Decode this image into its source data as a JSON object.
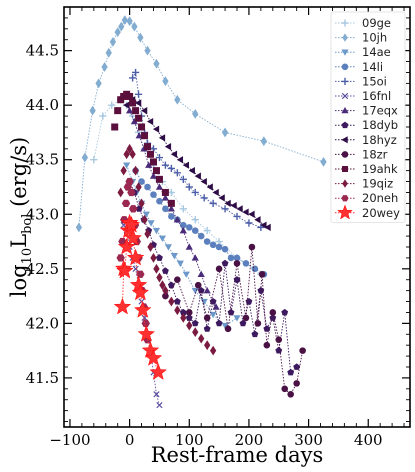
{
  "chart_data": {
    "type": "scatter",
    "xlabel": "Rest-frame days",
    "ylabel_main": "log",
    "ylabel_sub": "10",
    "ylabel_rest": "L",
    "ylabel_sub2": "bol",
    "ylabel_unit": " (erg/s)",
    "xlim": [
      -110,
      470
    ],
    "ylim": [
      41.05,
      44.9
    ],
    "xticks": [
      -100,
      0,
      100,
      200,
      300,
      400
    ],
    "yticks": [
      41.5,
      42.0,
      42.5,
      43.0,
      43.5,
      44.0,
      44.5
    ],
    "ytick_labels": [
      "41.5",
      "42.0",
      "42.5",
      "43.0",
      "43.5",
      "44.0",
      "44.5"
    ],
    "grid": false,
    "legend_position": "top-right",
    "series": [
      {
        "name": "09ge",
        "color": "#a8c8e0",
        "marker": "plus",
        "line": true,
        "x": [
          -60,
          -45,
          -30,
          -15,
          -5,
          5,
          15,
          25,
          40,
          55,
          70,
          90,
          110,
          130,
          150,
          180,
          220
        ],
        "y": [
          43.5,
          43.9,
          44.0,
          44.05,
          44.0,
          43.9,
          43.75,
          43.6,
          43.45,
          43.3,
          43.2,
          43.05,
          42.95,
          42.85,
          42.75,
          42.6,
          42.45
        ]
      },
      {
        "name": "10jh",
        "color": "#82acd0",
        "marker": "diamond",
        "line": true,
        "x": [
          -85,
          -75,
          -62,
          -52,
          -42,
          -35,
          -28,
          -20,
          -14,
          -8,
          0,
          8,
          18,
          30,
          45,
          60,
          80,
          110,
          160,
          225,
          325
        ],
        "y": [
          42.88,
          43.52,
          43.95,
          44.2,
          44.35,
          44.48,
          44.58,
          44.67,
          44.72,
          44.78,
          44.77,
          44.72,
          44.62,
          44.5,
          44.38,
          44.22,
          44.05,
          43.92,
          43.75,
          43.67,
          43.48
        ]
      },
      {
        "name": "14ae",
        "color": "#6c99c9",
        "marker": "tri-down",
        "line": true,
        "x": [
          -5,
          5,
          12,
          20,
          28,
          36,
          45,
          55,
          65,
          75,
          85,
          95,
          110,
          125,
          140,
          160,
          180
        ],
        "y": [
          43.45,
          43.3,
          43.2,
          43.1,
          43.0,
          42.92,
          42.85,
          42.78,
          42.7,
          42.62,
          42.55,
          42.45,
          42.3,
          42.2,
          42.08,
          41.98,
          42.05
        ]
      },
      {
        "name": "14li",
        "color": "#5b80bd",
        "marker": "circle",
        "line": true,
        "x": [
          10,
          20,
          30,
          40,
          50,
          60,
          70,
          80,
          90,
          100,
          110,
          120,
          130,
          140,
          150,
          160,
          170,
          180,
          195,
          210,
          225
        ],
        "y": [
          43.4,
          43.3,
          43.25,
          43.18,
          43.12,
          43.05,
          42.98,
          42.95,
          42.9,
          42.88,
          42.85,
          42.8,
          42.75,
          42.72,
          42.7,
          42.68,
          42.6,
          42.6,
          42.55,
          42.5,
          42.45
        ]
      },
      {
        "name": "15oi",
        "color": "#4c5ea8",
        "marker": "plus",
        "line": true,
        "x": [
          5,
          10,
          15,
          20,
          25,
          30,
          40,
          50,
          60,
          70,
          80,
          90,
          100,
          110,
          125,
          140,
          160,
          180,
          200,
          220
        ],
        "y": [
          44.25,
          44.3,
          44.1,
          43.9,
          43.75,
          43.65,
          43.6,
          43.52,
          43.45,
          43.42,
          43.38,
          43.32,
          43.25,
          43.2,
          43.15,
          43.1,
          43.05,
          42.98,
          42.92,
          42.88
        ]
      },
      {
        "name": "16fnl",
        "color": "#5a4fa0",
        "marker": "cross",
        "line": true,
        "x": [
          -10,
          -5,
          0,
          5,
          10,
          15,
          20,
          25,
          30,
          35,
          40,
          45,
          50
        ],
        "y": [
          42.9,
          42.85,
          42.7,
          42.6,
          42.5,
          42.35,
          42.2,
          42.05,
          41.9,
          41.75,
          41.55,
          41.35,
          41.25
        ]
      },
      {
        "name": "17eqx",
        "color": "#4a2b7a",
        "marker": "tri-up",
        "line": true,
        "x": [
          0,
          8,
          16,
          24,
          32,
          40,
          50,
          60,
          70,
          80,
          90,
          100,
          110,
          120,
          130,
          145
        ],
        "y": [
          43.95,
          43.85,
          43.72,
          43.6,
          43.45,
          43.35,
          43.25,
          43.15,
          43.05,
          42.95,
          42.85,
          42.7,
          42.6,
          42.45,
          42.3,
          42.15
        ]
      },
      {
        "name": "18dyb",
        "color": "#3d1a60",
        "marker": "pentagon",
        "line": true,
        "x": [
          0,
          8,
          16,
          24,
          32,
          40,
          50,
          60,
          70,
          80,
          90,
          100,
          110,
          120,
          130,
          140,
          150,
          160,
          170,
          180,
          190,
          200,
          210,
          220,
          230,
          240,
          250,
          260,
          270,
          280
        ],
        "y": [
          43.3,
          43.2,
          43.05,
          42.95,
          42.85,
          42.72,
          42.6,
          42.48,
          42.35,
          42.2,
          42.1,
          42.05,
          42.0,
          42.3,
          41.95,
          42.2,
          42.0,
          42.55,
          42.1,
          42.4,
          42.0,
          42.2,
          41.9,
          42.3,
          41.95,
          42.05,
          41.75,
          42.1,
          41.55,
          41.6
        ]
      },
      {
        "name": "18hyz",
        "color": "#2e0d46",
        "marker": "tri-left",
        "line": true,
        "x": [
          -5,
          5,
          15,
          25,
          35,
          45,
          55,
          65,
          75,
          85,
          95,
          105,
          115,
          125,
          135,
          145,
          155,
          165,
          175,
          185,
          195,
          205,
          215,
          225,
          232
        ],
        "y": [
          44.0,
          44.05,
          44.02,
          43.95,
          43.85,
          43.78,
          43.7,
          43.62,
          43.55,
          43.5,
          43.45,
          43.4,
          43.35,
          43.3,
          43.25,
          43.2,
          43.15,
          43.1,
          43.08,
          43.05,
          43.02,
          43.0,
          42.95,
          42.9,
          42.88
        ]
      },
      {
        "name": "18zr",
        "color": "#4a1145",
        "marker": "circle",
        "line": true,
        "x": [
          60,
          80,
          100,
          115,
          130,
          150,
          165,
          180,
          195,
          205,
          215,
          222,
          230,
          240,
          250,
          260,
          270,
          280,
          290
        ],
        "y": [
          42.25,
          42.4,
          42.1,
          42.35,
          42.05,
          42.5,
          41.95,
          42.55,
          42.05,
          42.7,
          42.0,
          42.45,
          41.8,
          42.1,
          41.85,
          41.4,
          41.35,
          41.45,
          41.75
        ]
      },
      {
        "name": "19ahk",
        "color": "#5a0f3c",
        "marker": "square",
        "line": false,
        "x": [
          -25,
          -20,
          -15,
          -10,
          -5,
          0,
          5,
          10,
          15,
          20,
          25,
          30,
          35,
          40,
          45,
          50,
          60,
          70
        ],
        "y": [
          43.8,
          43.95,
          44.05,
          44.08,
          44.1,
          44.08,
          44.02,
          43.95,
          43.88,
          43.8,
          43.72,
          43.62,
          43.55,
          43.48,
          43.4,
          43.32,
          43.2,
          43.1
        ]
      },
      {
        "name": "19qiz",
        "color": "#7a1a40",
        "marker": "diamond",
        "line": false,
        "x": [
          -15,
          -10,
          -5,
          0,
          5,
          10,
          15,
          20,
          25,
          30,
          35,
          40,
          45,
          50,
          55,
          60,
          70,
          80,
          90,
          100,
          110,
          120,
          130,
          140
        ],
        "y": [
          43.2,
          43.4,
          43.55,
          43.6,
          43.55,
          43.4,
          43.25,
          43.1,
          42.95,
          42.82,
          42.7,
          42.6,
          42.5,
          42.42,
          42.35,
          42.3,
          42.2,
          42.12,
          42.05,
          41.98,
          41.92,
          41.86,
          41.8,
          41.75
        ]
      },
      {
        "name": "20neh",
        "color": "#9a2850",
        "marker": "hexagon",
        "line": false,
        "x": [
          -15,
          -12,
          -9,
          -6,
          -3,
          0,
          3,
          6,
          9,
          12,
          15,
          18,
          21,
          24,
          27,
          30
        ],
        "y": [
          42.6,
          42.75,
          42.95,
          43.1,
          43.25,
          43.3,
          43.2,
          43.05,
          42.9,
          42.75,
          42.6,
          42.45,
          42.3,
          42.15,
          42.0,
          41.85
        ]
      },
      {
        "name": "20wey",
        "color": "#ff3030",
        "marker": "star",
        "line": true,
        "x": [
          -12,
          -10,
          -8,
          -5,
          -2,
          0,
          3,
          6,
          10,
          15,
          18,
          22,
          28,
          35,
          40,
          48
        ],
        "y": [
          42.15,
          42.5,
          42.48,
          42.7,
          42.85,
          42.92,
          42.9,
          42.78,
          42.6,
          42.35,
          42.28,
          42.12,
          41.9,
          41.75,
          41.68,
          41.55
        ]
      }
    ]
  }
}
